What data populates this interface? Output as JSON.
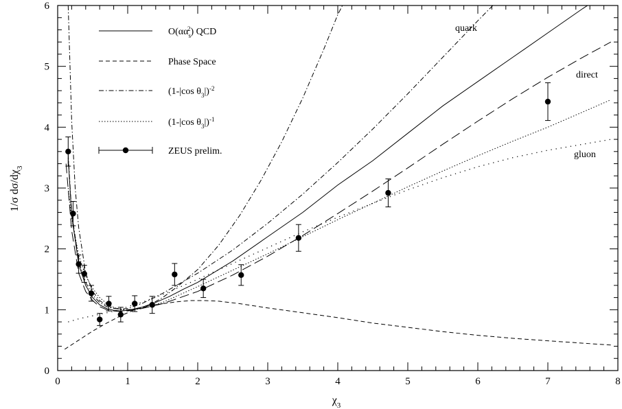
{
  "chart_data": {
    "type": "line",
    "xlabel": "χ3",
    "ylabel": "1/σ dσ/dχ3",
    "xlim": [
      0,
      8
    ],
    "ylim": [
      0,
      6
    ],
    "x_ticks": [
      "0",
      "1",
      "2",
      "3",
      "4",
      "5",
      "6",
      "7",
      "8"
    ],
    "y_ticks": [
      "0",
      "1",
      "2",
      "3",
      "4",
      "5",
      "6"
    ],
    "legend_placement": "top-left",
    "legend": [
      {
        "label": "O(αα_s²) QCD",
        "style": "solid"
      },
      {
        "label": "Phase Space",
        "style": "dashed"
      },
      {
        "label": "(1-|cos θ3|)^-2",
        "style": "dashdot"
      },
      {
        "label": "(1-|cos θ3|)^-1",
        "style": "dotted"
      },
      {
        "label": "ZEUS prelim.",
        "style": "points"
      }
    ],
    "annotations": [
      {
        "text": "quark",
        "x": 6.55,
        "y": 5.72
      },
      {
        "text": "direct",
        "x": 7.3,
        "y": 5.0
      },
      {
        "text": "gluon",
        "x": 7.3,
        "y": 3.32
      }
    ],
    "series": [
      {
        "name": "O(αα_s²) QCD",
        "style": "solid",
        "x": [
          0.15,
          0.2,
          0.3,
          0.4,
          0.5,
          0.6,
          0.7,
          0.8,
          0.9,
          1.0,
          1.2,
          1.4,
          1.6,
          1.8,
          2.0,
          2.5,
          3.0,
          3.5,
          4.0,
          4.5,
          5.0,
          5.5,
          6.0,
          6.5,
          7.0,
          7.5,
          7.9
        ],
        "y": [
          3.5,
          2.55,
          1.75,
          1.4,
          1.2,
          1.08,
          1.02,
          0.99,
          0.98,
          0.99,
          1.04,
          1.12,
          1.22,
          1.34,
          1.45,
          1.8,
          2.2,
          2.6,
          3.05,
          3.45,
          3.9,
          4.35,
          4.75,
          5.15,
          5.55,
          5.95,
          6.25
        ]
      },
      {
        "name": "Phase Space",
        "style": "dashed",
        "x": [
          0.1,
          0.3,
          0.5,
          0.7,
          0.9,
          1.1,
          1.3,
          1.5,
          1.7,
          1.9,
          2.1,
          2.3,
          2.6,
          3.0,
          3.5,
          4.0,
          4.5,
          5.0,
          5.5,
          6.0,
          6.5,
          7.0,
          7.5,
          7.9
        ],
        "y": [
          0.35,
          0.5,
          0.65,
          0.78,
          0.9,
          1.0,
          1.06,
          1.1,
          1.13,
          1.15,
          1.15,
          1.14,
          1.1,
          1.03,
          0.95,
          0.87,
          0.78,
          0.71,
          0.64,
          0.58,
          0.53,
          0.49,
          0.45,
          0.42
        ]
      },
      {
        "name": "direct",
        "style": "longdash",
        "x": [
          0.12,
          0.2,
          0.3,
          0.4,
          0.5,
          0.6,
          0.7,
          0.8,
          0.9,
          1.0,
          1.2,
          1.5,
          2.0,
          2.5,
          3.0,
          3.5,
          4.0,
          4.5,
          5.0,
          5.5,
          6.0,
          6.5,
          7.0,
          7.5,
          7.9
        ],
        "y": [
          3.4,
          2.3,
          1.6,
          1.3,
          1.15,
          1.05,
          1.0,
          0.98,
          0.97,
          0.98,
          1.02,
          1.1,
          1.3,
          1.57,
          1.88,
          2.22,
          2.58,
          2.95,
          3.33,
          3.72,
          4.1,
          4.47,
          4.82,
          5.15,
          5.4
        ]
      },
      {
        "name": "(1-|cos θ3|)^-2",
        "style": "dashdot",
        "x": [
          0.15,
          0.2,
          0.25,
          0.3,
          0.4,
          0.5,
          0.6,
          0.7,
          0.8,
          0.9,
          1.0,
          1.1,
          1.2,
          1.3,
          1.5,
          1.7,
          2.0,
          2.3,
          2.6,
          2.9,
          3.2,
          3.5,
          3.8,
          4.0,
          4.2
        ],
        "y": [
          6.0,
          4.1,
          3.0,
          2.35,
          1.6,
          1.3,
          1.15,
          1.07,
          1.03,
          1.01,
          1.0,
          1.01,
          1.03,
          1.07,
          1.2,
          1.37,
          1.66,
          2.06,
          2.55,
          3.12,
          3.76,
          4.48,
          5.28,
          5.85,
          6.3
        ]
      },
      {
        "name": "(1-|cos θ3|)^-1",
        "style": "dotted",
        "x": [
          0.15,
          0.2,
          0.3,
          0.4,
          0.5,
          0.6,
          0.7,
          0.8,
          0.9,
          1.0,
          1.2,
          1.5,
          2.0,
          2.5,
          3.0,
          3.5,
          4.0,
          4.5,
          5.0,
          5.5,
          6.0,
          6.5,
          7.0,
          7.5,
          7.9
        ],
        "y": [
          3.0,
          2.5,
          1.9,
          1.55,
          1.35,
          1.2,
          1.1,
          1.04,
          1.0,
          0.99,
          1.02,
          1.12,
          1.38,
          1.65,
          1.92,
          2.2,
          2.48,
          2.75,
          3.02,
          3.28,
          3.53,
          3.77,
          4.0,
          4.25,
          4.45
        ]
      },
      {
        "name": "quark",
        "style": "dashdot",
        "x": [
          0.15,
          0.2,
          0.3,
          0.4,
          0.5,
          0.6,
          0.7,
          0.8,
          0.9,
          1.0,
          1.2,
          1.5,
          2.0,
          2.5,
          3.0,
          3.5,
          4.0,
          4.5,
          5.0,
          5.5,
          6.0,
          6.3
        ],
        "y": [
          3.55,
          2.6,
          1.8,
          1.45,
          1.24,
          1.12,
          1.05,
          1.02,
          1.01,
          1.02,
          1.1,
          1.27,
          1.6,
          1.98,
          2.42,
          2.9,
          3.42,
          3.97,
          4.55,
          5.15,
          5.75,
          6.1
        ]
      },
      {
        "name": "gluon",
        "style": "sparsedot",
        "x": [
          0.15,
          0.3,
          0.5,
          0.7,
          0.9,
          1.0,
          1.2,
          1.5,
          2.0,
          2.5,
          3.0,
          3.5,
          4.0,
          4.5,
          5.0,
          5.5,
          6.0,
          6.5,
          7.0,
          7.5,
          7.9
        ],
        "y": [
          0.8,
          0.85,
          0.9,
          0.95,
          1.0,
          1.05,
          1.12,
          1.25,
          1.5,
          1.76,
          2.02,
          2.28,
          2.52,
          2.75,
          2.97,
          3.17,
          3.35,
          3.5,
          3.62,
          3.72,
          3.8
        ]
      }
    ],
    "points": {
      "name": "ZEUS prelim.",
      "x": [
        0.15,
        0.22,
        0.3,
        0.38,
        0.48,
        0.6,
        0.73,
        0.9,
        1.1,
        1.35,
        1.67,
        2.08,
        2.62,
        3.44,
        4.72,
        7.0
      ],
      "y": [
        3.6,
        2.58,
        1.75,
        1.59,
        1.27,
        0.84,
        1.1,
        0.92,
        1.1,
        1.08,
        1.58,
        1.35,
        1.57,
        2.18,
        2.92,
        4.42
      ],
      "err": [
        0.24,
        0.2,
        0.15,
        0.14,
        0.13,
        0.1,
        0.12,
        0.12,
        0.13,
        0.14,
        0.18,
        0.15,
        0.17,
        0.22,
        0.23,
        0.31
      ]
    }
  }
}
